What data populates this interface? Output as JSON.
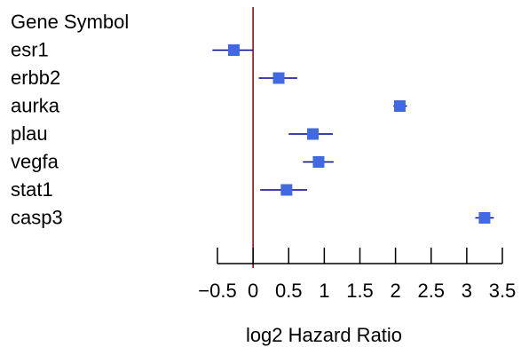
{
  "chart_data": {
    "type": "forest",
    "row_header": "Gene Symbol",
    "xlabel": "log2 Hazard Ratio",
    "xlim": [
      -0.5,
      3.5
    ],
    "xticks": [
      -0.5,
      0,
      0.5,
      1,
      1.5,
      2,
      2.5,
      3,
      3.5
    ],
    "xtick_labels": [
      "−0.5",
      "0",
      "0.5",
      "1",
      "1.5",
      "2",
      "2.5",
      "3",
      "3.5"
    ],
    "reference_line": 0,
    "series": [
      {
        "label": "esr1",
        "estimate": -0.27,
        "ci": [
          -0.57,
          0.0
        ]
      },
      {
        "label": "erbb2",
        "estimate": 0.36,
        "ci": [
          0.08,
          0.62
        ]
      },
      {
        "label": "aurka",
        "estimate": 2.06,
        "ci": [
          1.97,
          2.16
        ]
      },
      {
        "label": "plau",
        "estimate": 0.84,
        "ci": [
          0.5,
          1.12
        ]
      },
      {
        "label": "vegfa",
        "estimate": 0.92,
        "ci": [
          0.7,
          1.13
        ]
      },
      {
        "label": "stat1",
        "estimate": 0.47,
        "ci": [
          0.1,
          0.76
        ]
      },
      {
        "label": "casp3",
        "estimate": 3.25,
        "ci": [
          3.12,
          3.38
        ]
      }
    ],
    "colors": {
      "marker": "#4169E1",
      "ci_line": "#00008B",
      "reference_line": "#8B0000",
      "axis": "#000000"
    },
    "grid": false
  }
}
